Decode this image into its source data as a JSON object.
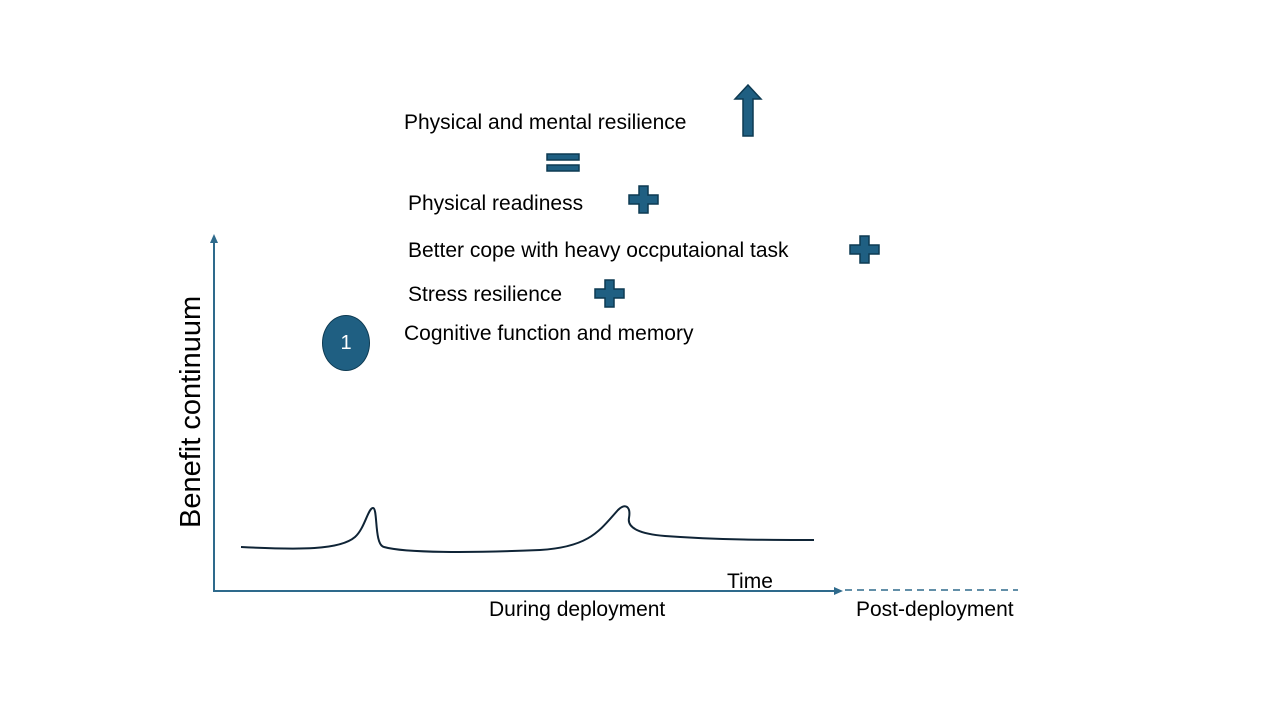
{
  "colors": {
    "accent": "#1f5f82",
    "accent_dark": "#0d3a52",
    "axis": "#2e6a8c",
    "curve": "#0f2436"
  },
  "axes": {
    "y_label": "Benefit continuum",
    "x_label": "Time",
    "phase_during": "During deployment",
    "phase_post": "Post-deployment"
  },
  "badge": {
    "number": "1"
  },
  "benefits": {
    "resilience": "Physical and mental resilience",
    "readiness": "Physical readiness",
    "cope": "Better cope with heavy  occputaional task",
    "stress": "Stress resilience",
    "cognitive": "Cognitive function and memory"
  },
  "icons": {
    "resilience": "up-arrow-icon",
    "equals": "equals-icon",
    "readiness": "plus-icon",
    "cope": "plus-icon",
    "stress": "plus-icon"
  }
}
